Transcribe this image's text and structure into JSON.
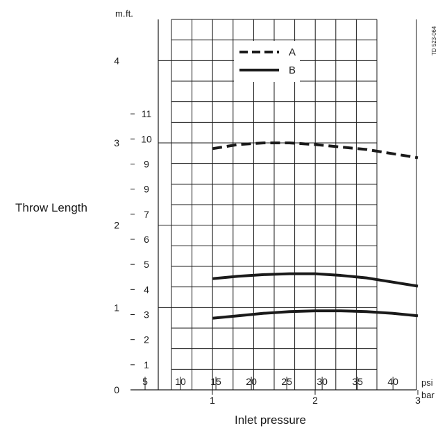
{
  "chart_data": {
    "type": "line",
    "xlabel": "Inlet pressure",
    "ylabel": "Throw Length",
    "y_units_primary": "m.",
    "y_units_secondary": "ft.",
    "x_units_primary": "bar",
    "x_units_secondary": "psi",
    "doc_code": "TD 523-064",
    "xlim_bar": [
      0,
      3.5
    ],
    "ylim_m": [
      0,
      4.5
    ],
    "bar_ticks": [
      1,
      2,
      3
    ],
    "m_ticks": [
      0,
      1,
      2,
      3,
      4
    ],
    "psi_ticks": [
      5,
      10,
      15,
      20,
      25,
      30,
      35,
      40
    ],
    "ft_tick_labels": [
      "1",
      "2",
      "3",
      "4",
      "5",
      "6",
      "7",
      "9",
      "9",
      "10",
      "11"
    ],
    "legend": [
      {
        "label": "A",
        "style": "dashed"
      },
      {
        "label": "B",
        "style": "solid"
      }
    ],
    "series": [
      {
        "name": "A",
        "style": "dashed",
        "x": [
          1.0,
          1.25,
          1.5,
          1.75,
          2.0,
          2.25,
          2.5,
          2.75,
          3.0
        ],
        "y": [
          2.93,
          2.98,
          3.0,
          3.0,
          2.98,
          2.95,
          2.92,
          2.87,
          2.82
        ]
      },
      {
        "name": "B",
        "style": "solid",
        "x": [
          1.0,
          1.25,
          1.5,
          1.75,
          2.0,
          2.25,
          2.5,
          2.75,
          3.0
        ],
        "y": [
          1.35,
          1.38,
          1.4,
          1.41,
          1.41,
          1.39,
          1.36,
          1.31,
          1.26
        ]
      },
      {
        "name": "B",
        "style": "solid",
        "x": [
          1.0,
          1.25,
          1.5,
          1.75,
          2.0,
          2.25,
          2.5,
          2.75,
          3.0
        ],
        "y": [
          0.87,
          0.9,
          0.93,
          0.95,
          0.96,
          0.96,
          0.95,
          0.93,
          0.9
        ]
      }
    ]
  }
}
